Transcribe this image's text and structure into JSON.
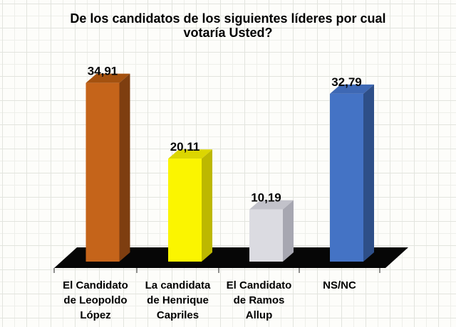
{
  "title": {
    "line1": "De los candidatos de los siguientes líderes por cual",
    "line2": "votaría Usted?"
  },
  "chart_data": {
    "type": "bar",
    "style": "3d-column",
    "title": "De los candidatos de los siguientes líderes por cual votaría Usted?",
    "categories": [
      "El Candidato de Leopoldo López",
      "La candidata de Henrique Capriles",
      "El Candidato de Ramos Allup",
      "NS/NC"
    ],
    "category_label_lines": [
      [
        "El Candidato",
        "de Leopoldo",
        "López"
      ],
      [
        "La candidata",
        "de Henrique",
        "Capriles"
      ],
      [
        "El Candidato",
        "de Ramos",
        "Allup"
      ],
      [
        "NS/NC"
      ]
    ],
    "values": [
      34.91,
      20.11,
      10.19,
      32.79
    ],
    "value_labels": [
      "34,91",
      "20,11",
      "10,19",
      "32,79"
    ],
    "xlabel": "",
    "ylabel": "",
    "ylim": [
      0,
      40
    ],
    "legend": "none",
    "grid_background": true,
    "bar_colors": [
      {
        "name": "orange",
        "front": "#C5641A",
        "side": "#7E3E10",
        "top": "#A4510F"
      },
      {
        "name": "yellow",
        "front": "#FBF500",
        "side": "#BDB800",
        "top": "#DCD600"
      },
      {
        "name": "silver",
        "front": "#DBDBE1",
        "side": "#A7A7B1",
        "top": "#C2C2CA"
      },
      {
        "name": "blue",
        "front": "#4473C5",
        "side": "#2E4F88",
        "top": "#3E68B4"
      }
    ],
    "floor_color": "#060606",
    "tick_color": "#6B6B6B",
    "text_color": "#000000"
  }
}
